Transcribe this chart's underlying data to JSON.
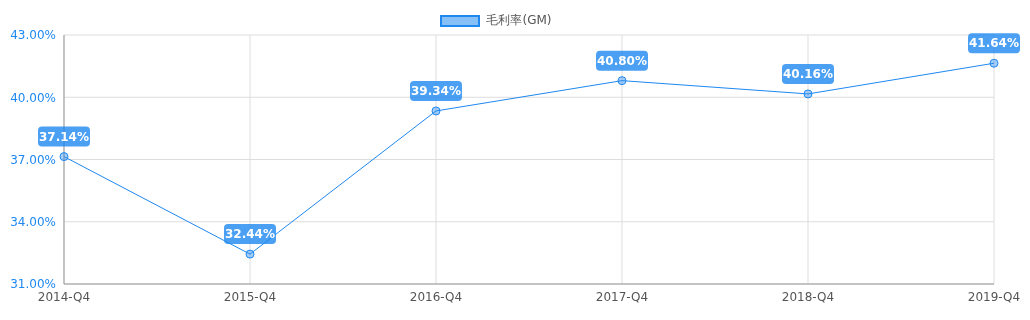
{
  "chart_data": {
    "type": "line",
    "categories": [
      "2014-Q4",
      "2015-Q4",
      "2016-Q4",
      "2017-Q4",
      "2018-Q4",
      "2019-Q4"
    ],
    "series": [
      {
        "name": "毛利率(GM)",
        "color": "#1e88f0",
        "values": [
          37.14,
          32.44,
          39.34,
          40.8,
          40.16,
          41.64
        ],
        "value_labels": [
          "37.14%",
          "32.44%",
          "39.34%",
          "40.80%",
          "40.16%",
          "41.64%"
        ]
      }
    ],
    "ylim": [
      31,
      43
    ],
    "yticks": [
      {
        "value": 31,
        "label": "31.00%"
      },
      {
        "value": 34,
        "label": "34.00%"
      },
      {
        "value": 37,
        "label": "37.00%"
      },
      {
        "value": 40,
        "label": "40.00%"
      },
      {
        "value": 43,
        "label": "43.00%"
      }
    ],
    "grid": true,
    "legend": "top",
    "marker": "circle",
    "line_style": "solid"
  }
}
